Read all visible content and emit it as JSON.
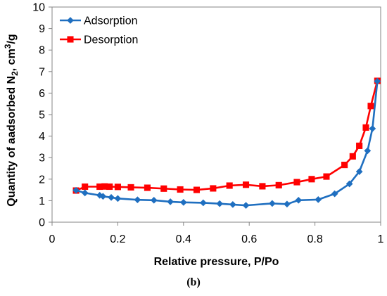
{
  "chart_data": {
    "type": "line",
    "xlabel": "Relative pressure, P/Po",
    "ylabel": {
      "prefix": "Quantity of aadsorbed N",
      "sub": "2",
      "mid": ", cm",
      "sup": "3",
      "suffix": "/g"
    },
    "xlim": [
      0,
      1
    ],
    "ylim": [
      0,
      10
    ],
    "xticks": [
      0,
      0.2,
      0.4,
      0.6,
      0.8,
      1
    ],
    "xtick_labels": [
      "0",
      "0.2",
      "0.4",
      "0.6",
      "0.8",
      "1"
    ],
    "yticks": [
      0,
      1,
      2,
      3,
      4,
      5,
      6,
      7,
      8,
      9,
      10
    ],
    "ytick_labels": [
      "0",
      "1",
      "2",
      "3",
      "4",
      "5",
      "6",
      "7",
      "8",
      "9",
      "10"
    ],
    "grid": false,
    "legend_position": "top-left",
    "series": [
      {
        "name": "Adsorption",
        "color": "#1f6fc0",
        "marker": "diamond",
        "x": [
          0.073,
          0.1,
          0.145,
          0.155,
          0.18,
          0.2,
          0.26,
          0.31,
          0.36,
          0.4,
          0.46,
          0.51,
          0.55,
          0.59,
          0.67,
          0.715,
          0.75,
          0.81,
          0.86,
          0.905,
          0.935,
          0.96,
          0.975,
          0.99
        ],
        "y": [
          1.48,
          1.36,
          1.25,
          1.2,
          1.15,
          1.1,
          1.04,
          1.02,
          0.95,
          0.92,
          0.9,
          0.86,
          0.82,
          0.78,
          0.87,
          0.84,
          1.02,
          1.05,
          1.32,
          1.78,
          2.35,
          3.32,
          4.35,
          6.55
        ]
      },
      {
        "name": "Desorption",
        "color": "#ff0000",
        "marker": "square",
        "x": [
          0.073,
          0.1,
          0.145,
          0.16,
          0.175,
          0.2,
          0.24,
          0.29,
          0.34,
          0.39,
          0.44,
          0.49,
          0.54,
          0.59,
          0.64,
          0.69,
          0.745,
          0.79,
          0.835,
          0.89,
          0.915,
          0.935,
          0.955,
          0.97,
          0.99
        ],
        "y": [
          1.47,
          1.65,
          1.65,
          1.66,
          1.65,
          1.64,
          1.62,
          1.6,
          1.56,
          1.52,
          1.5,
          1.57,
          1.7,
          1.74,
          1.67,
          1.72,
          1.86,
          2.0,
          2.12,
          2.66,
          3.06,
          3.55,
          4.4,
          5.4,
          6.57
        ]
      }
    ]
  },
  "caption": "(b)"
}
